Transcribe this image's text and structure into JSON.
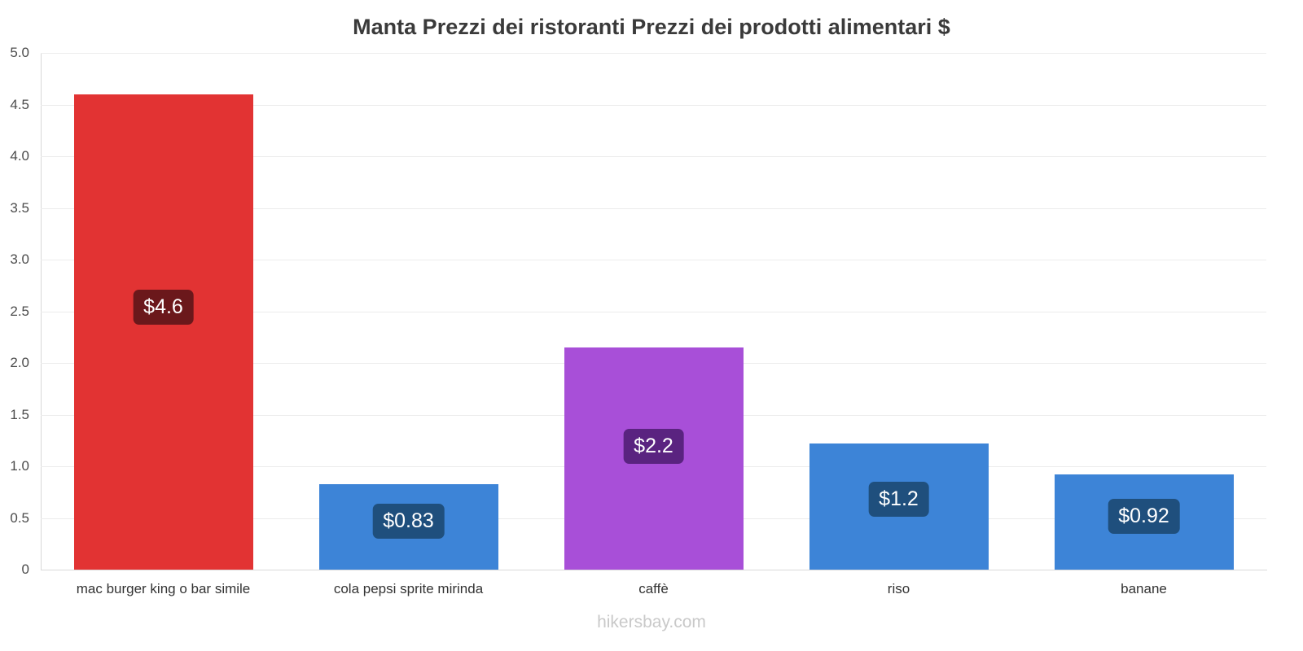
{
  "chart_data": {
    "type": "bar",
    "title": "Manta Prezzi dei ristoranti Prezzi dei prodotti alimentari $",
    "categories": [
      "mac burger king o bar simile",
      "cola pepsi sprite mirinda",
      "caffè",
      "riso",
      "banane"
    ],
    "values": [
      4.6,
      0.83,
      2.15,
      1.22,
      0.92
    ],
    "value_labels": [
      "$4.6",
      "$0.83",
      "$2.2",
      "$1.2",
      "$0.92"
    ],
    "bar_colors": [
      "#e23333",
      "#3d84d7",
      "#a84fd8",
      "#3d84d7",
      "#3d84d7"
    ],
    "value_label_bg_colors": [
      "#6b181b",
      "#1f4f7d",
      "#5a2380",
      "#1f4f7d",
      "#1f4f7d"
    ],
    "xlabel": "",
    "ylabel": "",
    "ylim": [
      0,
      5
    ],
    "ytick_step": 0.5,
    "ytick_labels": [
      "0",
      "0.5",
      "1.0",
      "1.5",
      "2.0",
      "2.5",
      "3.0",
      "3.5",
      "4.0",
      "4.5",
      "5.0"
    ],
    "grid": "horizontal",
    "legend": "none",
    "currency": "$",
    "source": "hikersbay.com"
  }
}
